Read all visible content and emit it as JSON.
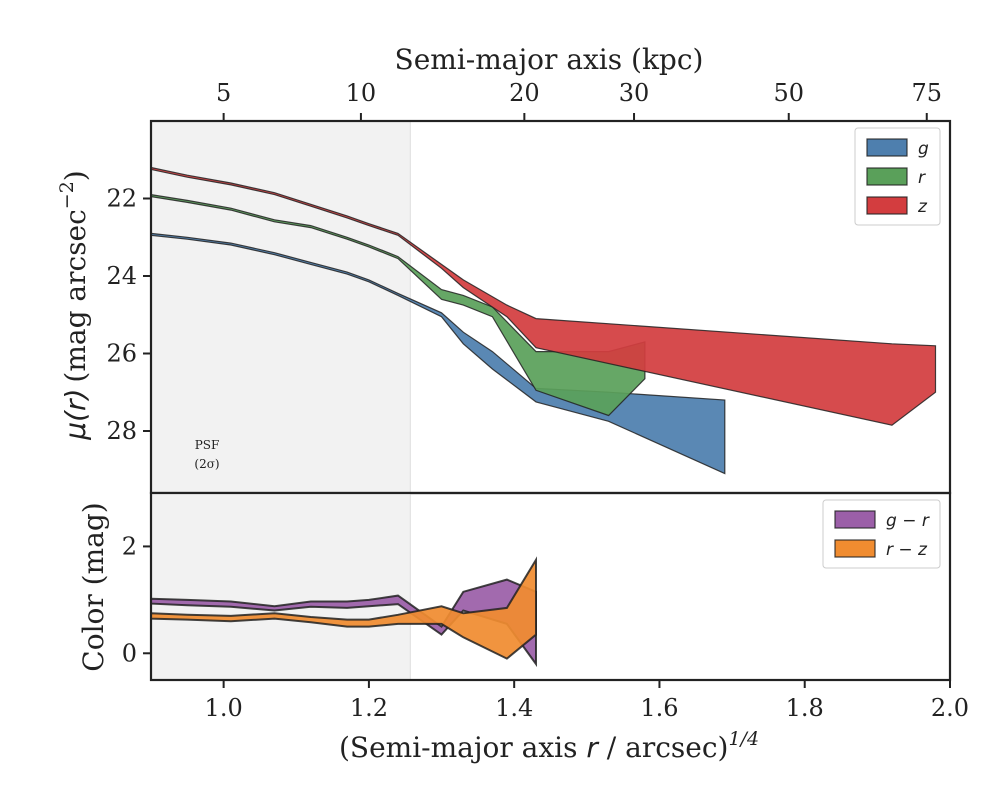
{
  "chart_data": [
    {
      "type": "area",
      "panel": "surface-brightness",
      "ylabel_main": "μ(r)",
      "ylabel_unit": "(mag arcsec",
      "ylabel_sup": "−2",
      "ylabel_close": ")",
      "top_xlabel": "Semi-major axis (kpc)",
      "top_ticks": [
        {
          "label": "5",
          "x": 1.0
        },
        {
          "label": "10",
          "x": 1.189
        },
        {
          "label": "20",
          "x": 1.414
        },
        {
          "label": "30",
          "x": 1.565
        },
        {
          "label": "50",
          "x": 1.778
        },
        {
          "label": "75",
          "x": 1.968
        }
      ],
      "xlim": [
        0.9,
        2.0
      ],
      "ylim": [
        20.0,
        29.6
      ],
      "y_inverted": true,
      "yticks": [
        22,
        24,
        26,
        28
      ],
      "psf_label_1": "PSF",
      "psf_label_2": "(2σ)",
      "psf_shade_xmax": 1.257,
      "legend_position": "top-right",
      "series": [
        {
          "name": "g",
          "color": "#4e7fae",
          "upper": [
            [
              0.9,
              22.9
            ],
            [
              0.95,
              23.0
            ],
            [
              1.01,
              23.15
            ],
            [
              1.07,
              23.4
            ],
            [
              1.12,
              23.65
            ],
            [
              1.17,
              23.9
            ],
            [
              1.2,
              24.1
            ],
            [
              1.24,
              24.45
            ],
            [
              1.3,
              24.95
            ],
            [
              1.33,
              25.45
            ],
            [
              1.37,
              25.95
            ],
            [
              1.43,
              26.9
            ],
            [
              1.53,
              27.0
            ],
            [
              1.69,
              27.2
            ]
          ],
          "lower": [
            [
              0.9,
              22.95
            ],
            [
              0.95,
              23.05
            ],
            [
              1.01,
              23.2
            ],
            [
              1.07,
              23.45
            ],
            [
              1.12,
              23.7
            ],
            [
              1.17,
              23.95
            ],
            [
              1.2,
              24.15
            ],
            [
              1.24,
              24.5
            ],
            [
              1.3,
              25.05
            ],
            [
              1.33,
              25.75
            ],
            [
              1.37,
              26.4
            ],
            [
              1.43,
              27.25
            ],
            [
              1.53,
              27.75
            ],
            [
              1.69,
              29.1
            ]
          ]
        },
        {
          "name": "r",
          "color": "#5aa05a",
          "upper": [
            [
              0.9,
              21.9
            ],
            [
              0.95,
              22.05
            ],
            [
              1.01,
              22.25
            ],
            [
              1.07,
              22.55
            ],
            [
              1.12,
              22.7
            ],
            [
              1.17,
              23.0
            ],
            [
              1.2,
              23.2
            ],
            [
              1.24,
              23.5
            ],
            [
              1.3,
              24.35
            ],
            [
              1.33,
              24.5
            ],
            [
              1.37,
              24.8
            ],
            [
              1.43,
              25.95
            ],
            [
              1.53,
              25.95
            ],
            [
              1.58,
              25.7
            ]
          ],
          "lower": [
            [
              0.9,
              21.95
            ],
            [
              0.95,
              22.1
            ],
            [
              1.01,
              22.3
            ],
            [
              1.07,
              22.6
            ],
            [
              1.12,
              22.75
            ],
            [
              1.17,
              23.05
            ],
            [
              1.2,
              23.25
            ],
            [
              1.24,
              23.55
            ],
            [
              1.3,
              24.6
            ],
            [
              1.33,
              24.75
            ],
            [
              1.37,
              25.05
            ],
            [
              1.43,
              26.95
            ],
            [
              1.53,
              27.6
            ],
            [
              1.58,
              26.65
            ]
          ]
        },
        {
          "name": "z",
          "color": "#d33d3f",
          "upper": [
            [
              0.9,
              21.2
            ],
            [
              0.95,
              21.4
            ],
            [
              1.01,
              21.6
            ],
            [
              1.07,
              21.85
            ],
            [
              1.12,
              22.15
            ],
            [
              1.17,
              22.45
            ],
            [
              1.2,
              22.65
            ],
            [
              1.24,
              22.9
            ],
            [
              1.3,
              23.7
            ],
            [
              1.33,
              24.1
            ],
            [
              1.39,
              24.75
            ],
            [
              1.43,
              25.1
            ],
            [
              1.92,
              25.75
            ],
            [
              1.98,
              25.8
            ]
          ],
          "lower": [
            [
              0.9,
              21.25
            ],
            [
              0.95,
              21.45
            ],
            [
              1.01,
              21.65
            ],
            [
              1.07,
              21.9
            ],
            [
              1.12,
              22.2
            ],
            [
              1.17,
              22.5
            ],
            [
              1.2,
              22.7
            ],
            [
              1.24,
              22.95
            ],
            [
              1.3,
              23.8
            ],
            [
              1.33,
              24.3
            ],
            [
              1.39,
              25.05
            ],
            [
              1.43,
              25.85
            ],
            [
              1.92,
              27.85
            ],
            [
              1.98,
              27.0
            ]
          ]
        }
      ]
    },
    {
      "type": "area",
      "panel": "color",
      "xlabel_main": "(Semi-major axis ",
      "xlabel_var": "r",
      "xlabel_unit": " / arcsec)",
      "xlabel_sup": "1/4",
      "ylabel": "Color (mag)",
      "xlim": [
        0.9,
        2.0
      ],
      "ylim": [
        -0.5,
        3.0
      ],
      "xticks": [
        1.0,
        1.2,
        1.4,
        1.6,
        1.8,
        2.0
      ],
      "xtick_labels": [
        "1.0",
        "1.2",
        "1.4",
        "1.6",
        "1.8",
        "2.0"
      ],
      "yticks": [
        0,
        2
      ],
      "ytick_labels": [
        "0",
        "2"
      ],
      "legend_position": "top-right",
      "series": [
        {
          "name": "g − r",
          "color": "#9b5fa8",
          "upper": [
            [
              0.9,
              1.02
            ],
            [
              0.95,
              1.0
            ],
            [
              1.01,
              0.97
            ],
            [
              1.07,
              0.88
            ],
            [
              1.12,
              0.97
            ],
            [
              1.17,
              0.97
            ],
            [
              1.2,
              1.0
            ],
            [
              1.24,
              1.08
            ],
            [
              1.3,
              0.5
            ],
            [
              1.33,
              1.15
            ],
            [
              1.39,
              1.38
            ],
            [
              1.43,
              1.15
            ]
          ],
          "lower": [
            [
              0.9,
              0.93
            ],
            [
              0.95,
              0.9
            ],
            [
              1.01,
              0.87
            ],
            [
              1.07,
              0.8
            ],
            [
              1.12,
              0.87
            ],
            [
              1.17,
              0.85
            ],
            [
              1.2,
              0.88
            ],
            [
              1.24,
              0.92
            ],
            [
              1.3,
              0.35
            ],
            [
              1.33,
              0.8
            ],
            [
              1.39,
              0.55
            ],
            [
              1.43,
              -0.2
            ]
          ]
        },
        {
          "name": "r − z",
          "color": "#f08c30",
          "upper": [
            [
              0.9,
              0.75
            ],
            [
              0.95,
              0.72
            ],
            [
              1.01,
              0.7
            ],
            [
              1.07,
              0.75
            ],
            [
              1.12,
              0.68
            ],
            [
              1.17,
              0.63
            ],
            [
              1.2,
              0.63
            ],
            [
              1.24,
              0.72
            ],
            [
              1.3,
              0.88
            ],
            [
              1.33,
              0.75
            ],
            [
              1.39,
              0.85
            ],
            [
              1.43,
              1.75
            ]
          ],
          "lower": [
            [
              0.9,
              0.65
            ],
            [
              0.95,
              0.63
            ],
            [
              1.01,
              0.6
            ],
            [
              1.07,
              0.65
            ],
            [
              1.12,
              0.58
            ],
            [
              1.17,
              0.5
            ],
            [
              1.2,
              0.5
            ],
            [
              1.24,
              0.55
            ],
            [
              1.3,
              0.55
            ],
            [
              1.33,
              0.3
            ],
            [
              1.39,
              -0.1
            ],
            [
              1.43,
              0.35
            ]
          ]
        }
      ]
    }
  ]
}
